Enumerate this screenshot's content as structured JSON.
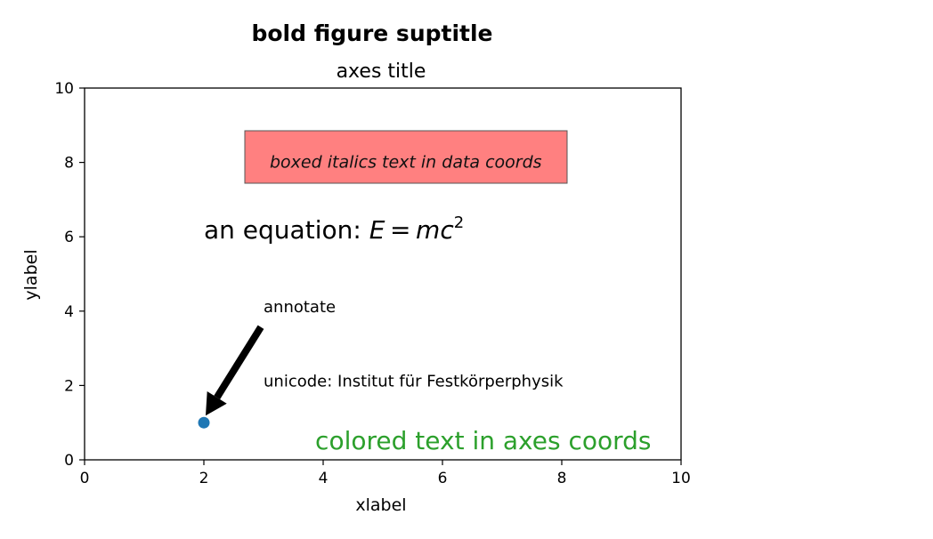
{
  "chart_data": {
    "type": "scatter",
    "suptitle": "bold figure suptitle",
    "title": "axes title",
    "xlabel": "xlabel",
    "ylabel": "ylabel",
    "xlim": [
      0,
      10
    ],
    "ylim": [
      0,
      10
    ],
    "xticks": [
      0,
      2,
      4,
      6,
      8,
      10
    ],
    "yticks": [
      0,
      2,
      4,
      6,
      8,
      10
    ],
    "grid": false,
    "series": [
      {
        "x": [
          2
        ],
        "y": [
          1
        ],
        "color": "#1f77b4"
      }
    ],
    "annotations": {
      "boxed_text": {
        "text": "boxed italics text in data coords",
        "x": 3,
        "y": 8,
        "fill": "#ff8080"
      },
      "equation": {
        "prefix": "an equation: ",
        "x": 2,
        "y": 6
      },
      "unicode": {
        "text": "unicode: Institut für Festkörperphysik",
        "x": 3,
        "y": 2
      },
      "colored": {
        "text": "colored text in axes coords",
        "x_frac": 0.95,
        "y_frac": 0.01,
        "color": "#2ca02c"
      },
      "arrow": {
        "text": "annotate",
        "xy": [
          2,
          1
        ],
        "xytext": [
          3,
          4
        ]
      }
    }
  }
}
